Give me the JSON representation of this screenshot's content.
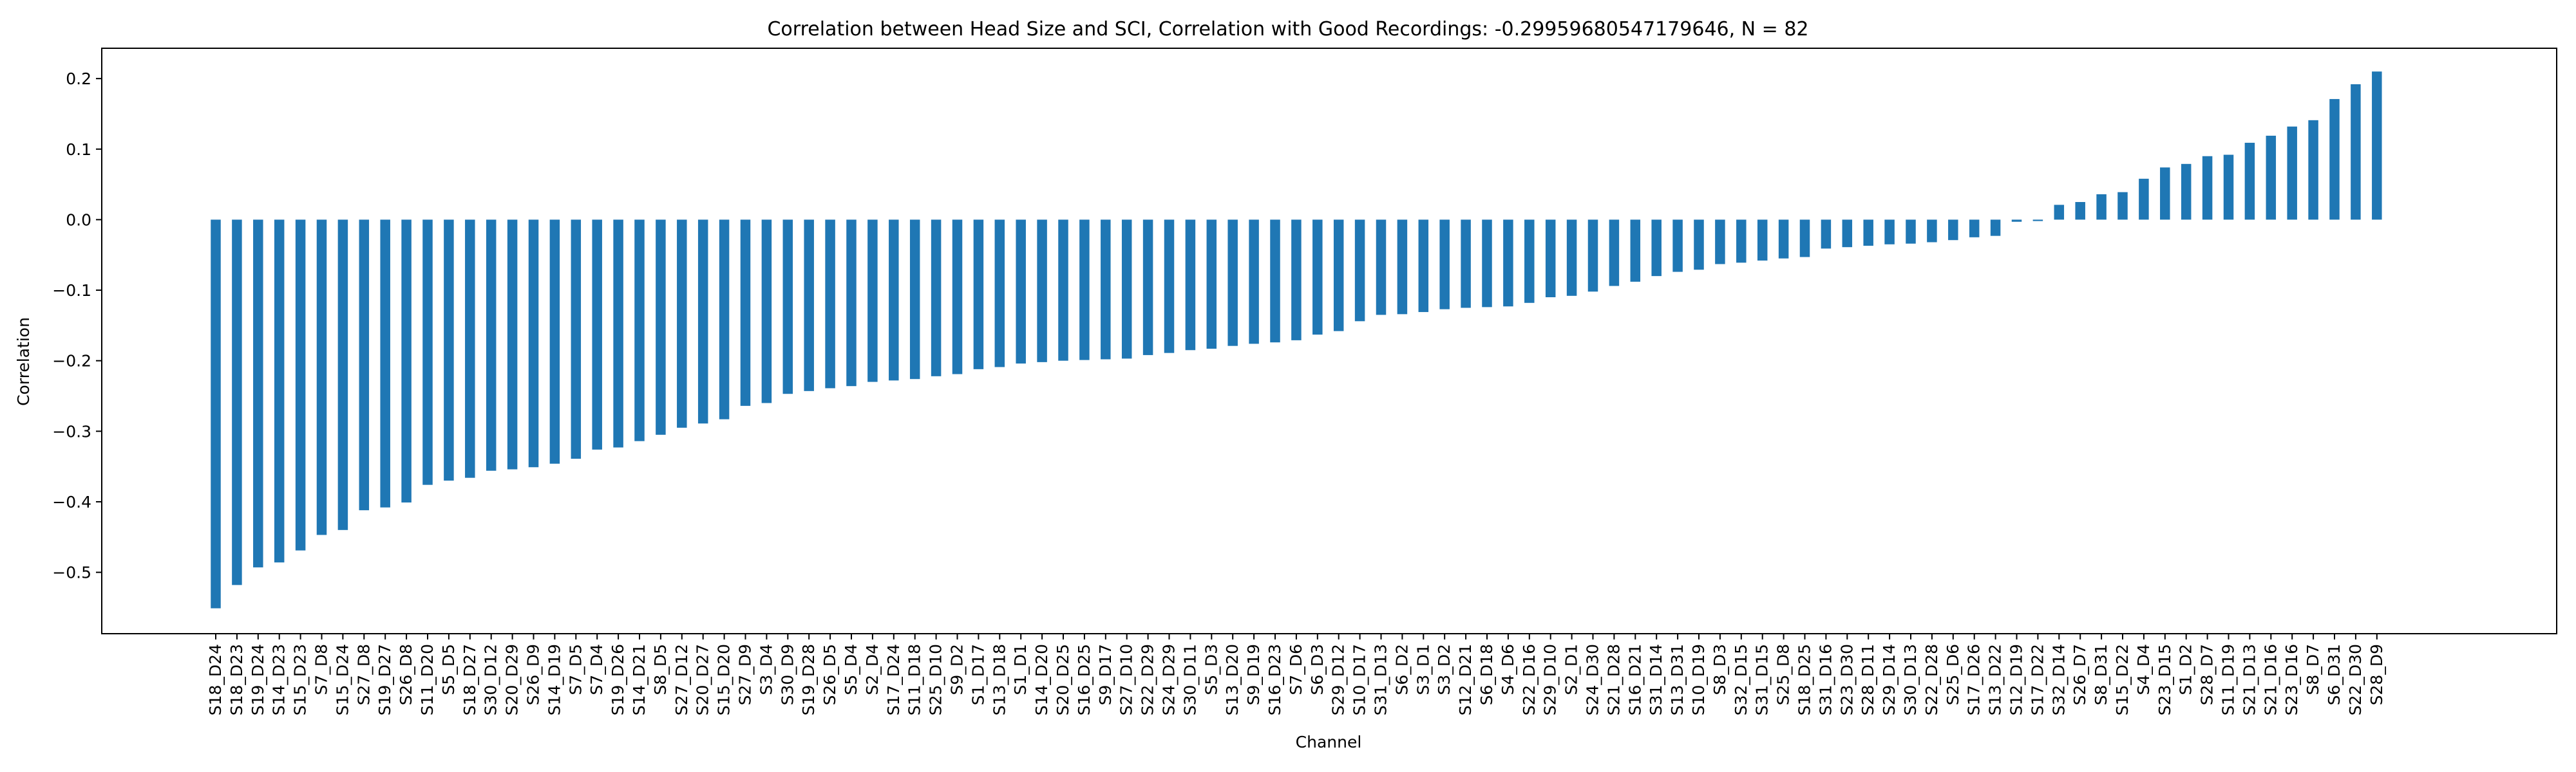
{
  "chart_data": {
    "type": "bar",
    "title": "Correlation between Head Size and SCI, Correlation with Good Recordings: -0.29959680547179646, N = 82",
    "xlabel": "Channel",
    "ylabel": "Correlation",
    "ylim": [
      -0.587,
      0.243
    ],
    "yticks": [
      "-0.5",
      "-0.4",
      "-0.3",
      "-0.2",
      "-0.1",
      "0.0",
      "0.1",
      "0.2"
    ],
    "grid": false,
    "legend": "none",
    "bar_color": "#1f77b4",
    "categories": [
      "S18_D24",
      "S18_D23",
      "S19_D24",
      "S14_D23",
      "S15_D23",
      "S7_D8",
      "S15_D24",
      "S27_D8",
      "S19_D27",
      "S26_D8",
      "S11_D20",
      "S5_D5",
      "S18_D27",
      "S30_D12",
      "S20_D29",
      "S26_D9",
      "S14_D19",
      "S7_D5",
      "S7_D4",
      "S19_D26",
      "S14_D21",
      "S8_D5",
      "S27_D12",
      "S20_D27",
      "S15_D20",
      "S27_D9",
      "S3_D4",
      "S30_D9",
      "S19_D28",
      "S26_D5",
      "S5_D4",
      "S2_D4",
      "S17_D24",
      "S11_D18",
      "S25_D10",
      "S9_D2",
      "S1_D17",
      "S13_D18",
      "S1_D1",
      "S14_D20",
      "S20_D25",
      "S16_D25",
      "S9_D17",
      "S27_D10",
      "S22_D29",
      "S24_D29",
      "S30_D11",
      "S5_D3",
      "S13_D20",
      "S9_D19",
      "S16_D23",
      "S7_D6",
      "S6_D3",
      "S29_D12",
      "S10_D17",
      "S31_D13",
      "S6_D2",
      "S3_D1",
      "S3_D2",
      "S12_D21",
      "S6_D18",
      "S4_D6",
      "S22_D16",
      "S29_D10",
      "S2_D1",
      "S24_D30",
      "S21_D28",
      "S16_D21",
      "S31_D14",
      "S13_D31",
      "S10_D19",
      "S8_D3",
      "S32_D15",
      "S31_D15",
      "S25_D8",
      "S18_D25",
      "S31_D16",
      "S23_D30",
      "S28_D11",
      "S29_D14",
      "S30_D13",
      "S22_D28",
      "S25_D6",
      "S17_D26",
      "S13_D22",
      "S12_D19",
      "S17_D22",
      "S32_D14",
      "S26_D7",
      "S8_D31",
      "S15_D22",
      "S4_D4",
      "S23_D15",
      "S1_D2",
      "S28_D7",
      "S11_D19",
      "S21_D13",
      "S21_D16",
      "S23_D16",
      "S8_D7",
      "S6_D31",
      "S22_D30",
      "S28_D9"
    ],
    "values": [
      -0.551,
      -0.518,
      -0.493,
      -0.486,
      -0.469,
      -0.447,
      -0.44,
      -0.412,
      -0.408,
      -0.401,
      -0.376,
      -0.37,
      -0.366,
      -0.356,
      -0.354,
      -0.351,
      -0.346,
      -0.339,
      -0.326,
      -0.323,
      -0.314,
      -0.305,
      -0.295,
      -0.289,
      -0.283,
      -0.264,
      -0.26,
      -0.247,
      -0.243,
      -0.239,
      -0.236,
      -0.23,
      -0.228,
      -0.226,
      -0.222,
      -0.219,
      -0.212,
      -0.209,
      -0.204,
      -0.202,
      -0.2,
      -0.199,
      -0.198,
      -0.197,
      -0.192,
      -0.189,
      -0.185,
      -0.183,
      -0.179,
      -0.176,
      -0.174,
      -0.171,
      -0.163,
      -0.158,
      -0.144,
      -0.135,
      -0.134,
      -0.131,
      -0.127,
      -0.125,
      -0.124,
      -0.123,
      -0.118,
      -0.11,
      -0.108,
      -0.102,
      -0.094,
      -0.088,
      -0.08,
      -0.074,
      -0.071,
      -0.063,
      -0.061,
      -0.058,
      -0.055,
      -0.053,
      -0.041,
      -0.039,
      -0.037,
      -0.035,
      -0.034,
      -0.032,
      -0.029,
      -0.025,
      -0.023,
      -0.003,
      -0.002,
      0.021,
      0.025,
      0.036,
      0.039,
      0.058,
      0.074,
      0.079,
      0.09,
      0.092,
      0.109,
      0.119,
      0.132,
      0.141,
      0.171,
      0.192,
      0.21
    ]
  }
}
